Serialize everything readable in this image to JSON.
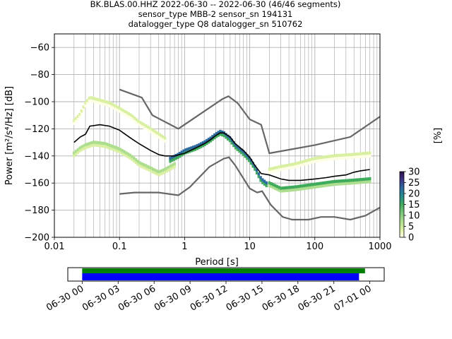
{
  "chart_data": {
    "type": "heatmap",
    "title_lines": [
      "BK.BLAS.00.HHZ   2022-06-30 -- 2022-06-30  (46/46 segments)",
      "sensor_type MBB-2 sensor_sn 194131",
      "datalogger_type Q8 datalogger_sn 510762"
    ],
    "xlabel": "Period [s]",
    "ylabel": "Power [m²/s⁴/Hz] [dB]",
    "x_scale": "log",
    "xlim": [
      0.01,
      1000
    ],
    "ylim": [
      -200,
      -50
    ],
    "x_ticks": [
      0.01,
      0.1,
      1,
      10,
      100,
      1000
    ],
    "x_tick_labels": [
      "0.01",
      "0.1",
      "1",
      "10",
      "100",
      "1000"
    ],
    "y_ticks": [
      -200,
      -180,
      -160,
      -140,
      -120,
      -100,
      -80,
      -60
    ],
    "y_tick_labels": [
      "−200",
      "−180",
      "−160",
      "−140",
      "−120",
      "−100",
      "−80",
      "−60"
    ],
    "grid": true,
    "colorbar": {
      "label": "[%]",
      "range": [
        0,
        30
      ],
      "ticks": [
        0,
        5,
        10,
        15,
        20,
        25,
        30
      ],
      "tick_labels": [
        "0",
        "5",
        "10",
        "15",
        "20",
        "25",
        "30"
      ]
    },
    "noise_model_high": [
      [
        0.1,
        -91
      ],
      [
        0.22,
        -97
      ],
      [
        0.32,
        -110
      ],
      [
        0.8,
        -120
      ],
      [
        3.8,
        -98
      ],
      [
        4.7,
        -96
      ],
      [
        6.5,
        -101
      ],
      [
        10,
        -113
      ],
      [
        15,
        -117
      ],
      [
        20,
        -138
      ],
      [
        100,
        -132
      ],
      [
        350,
        -126
      ],
      [
        1000,
        -111
      ]
    ],
    "noise_model_low": [
      [
        0.1,
        -168
      ],
      [
        0.17,
        -167
      ],
      [
        0.4,
        -167
      ],
      [
        0.8,
        -169
      ],
      [
        1.2,
        -163
      ],
      [
        2.4,
        -148
      ],
      [
        4,
        -142
      ],
      [
        4.8,
        -141
      ],
      [
        6,
        -147
      ],
      [
        10,
        -164
      ],
      [
        13,
        -167
      ],
      [
        15.5,
        -166
      ],
      [
        21,
        -176
      ],
      [
        32,
        -185
      ],
      [
        45,
        -187
      ],
      [
        80,
        -187
      ],
      [
        125,
        -185
      ],
      [
        200,
        -185
      ],
      [
        350,
        -187
      ],
      [
        600,
        -184
      ],
      [
        1000,
        -178
      ]
    ],
    "mean_psd": [
      [
        0.02,
        -130
      ],
      [
        0.025,
        -126
      ],
      [
        0.03,
        -124
      ],
      [
        0.035,
        -118
      ],
      [
        0.05,
        -117
      ],
      [
        0.07,
        -118
      ],
      [
        0.1,
        -121
      ],
      [
        0.15,
        -127
      ],
      [
        0.2,
        -131
      ],
      [
        0.3,
        -136
      ],
      [
        0.4,
        -139
      ],
      [
        0.5,
        -140
      ],
      [
        0.7,
        -140
      ],
      [
        1,
        -138
      ],
      [
        1.5,
        -134
      ],
      [
        2,
        -131
      ],
      [
        2.5,
        -128
      ],
      [
        3,
        -125
      ],
      [
        3.5,
        -123
      ],
      [
        4,
        -123
      ],
      [
        5,
        -126
      ],
      [
        6,
        -131
      ],
      [
        8,
        -136
      ],
      [
        10,
        -141
      ],
      [
        12,
        -147
      ],
      [
        15,
        -153
      ],
      [
        20,
        -154
      ],
      [
        30,
        -157
      ],
      [
        40,
        -158
      ],
      [
        60,
        -158
      ],
      [
        100,
        -157
      ],
      [
        150,
        -156
      ],
      [
        200,
        -155
      ],
      [
        300,
        -154
      ],
      [
        400,
        -152
      ],
      [
        500,
        -151
      ],
      [
        700,
        -150
      ]
    ],
    "histogram_bands": [
      {
        "name": "upper",
        "points": [
          [
            0.02,
            -114
          ],
          [
            0.025,
            -109
          ],
          [
            0.03,
            -101
          ],
          [
            0.035,
            -97
          ],
          [
            0.05,
            -99
          ],
          [
            0.07,
            -101
          ],
          [
            0.1,
            -105
          ],
          [
            0.15,
            -110
          ],
          [
            0.2,
            -115
          ],
          [
            0.3,
            -120
          ],
          [
            0.4,
            -124
          ],
          [
            0.5,
            -127
          ]
        ],
        "level": 3
      },
      {
        "name": "lower",
        "points": [
          [
            0.02,
            -138
          ],
          [
            0.025,
            -134
          ],
          [
            0.03,
            -132
          ],
          [
            0.04,
            -130
          ],
          [
            0.06,
            -131
          ],
          [
            0.1,
            -135
          ],
          [
            0.15,
            -140
          ],
          [
            0.2,
            -145
          ],
          [
            0.3,
            -149
          ],
          [
            0.4,
            -152
          ],
          [
            0.5,
            -150
          ],
          [
            0.7,
            -146
          ]
        ],
        "level": 8
      },
      {
        "name": "long-period-upper",
        "points": [
          [
            20,
            -150
          ],
          [
            30,
            -148
          ],
          [
            50,
            -146
          ],
          [
            100,
            -142
          ],
          [
            200,
            -140
          ],
          [
            400,
            -139
          ],
          [
            700,
            -138
          ]
        ],
        "level": 3
      },
      {
        "name": "long-period-core",
        "points": [
          [
            20,
            -160
          ],
          [
            30,
            -164
          ],
          [
            50,
            -163
          ],
          [
            100,
            -161
          ],
          [
            200,
            -159
          ],
          [
            400,
            -158
          ],
          [
            700,
            -157
          ]
        ],
        "level": 14
      },
      {
        "name": "short-period-core",
        "points": [
          [
            0.6,
            -142
          ],
          [
            0.8,
            -139
          ],
          [
            1,
            -136
          ],
          [
            1.5,
            -133
          ],
          [
            2,
            -130
          ],
          [
            2.5,
            -127
          ],
          [
            3,
            -124
          ],
          [
            3.5,
            -122
          ],
          [
            4,
            -123
          ],
          [
            5,
            -127
          ],
          [
            6,
            -132
          ],
          [
            8,
            -137
          ],
          [
            10,
            -142
          ],
          [
            12,
            -148
          ],
          [
            15,
            -157
          ],
          [
            18,
            -160
          ]
        ],
        "level": 24
      }
    ],
    "timeline": {
      "tick_labels": [
        "06-30 00",
        "06-30 03",
        "06-30 06",
        "06-30 09",
        "06-30 12",
        "06-30 15",
        "06-30 18",
        "06-30 21",
        "07-01 00"
      ],
      "hours": [
        0,
        3,
        6,
        9,
        12,
        15,
        18,
        21,
        24
      ],
      "data_span_hours": [
        0,
        23.6
      ],
      "used_span_hours": [
        0,
        23.1
      ],
      "xlim_hours": [
        -1.2,
        25.2
      ]
    },
    "colors": {
      "noise_model": "#666666",
      "mean": "#000000",
      "grid": "#b0b0b0",
      "timeline_data": "#008000",
      "timeline_used": "#0000ff",
      "colormap": [
        "#ffffe5",
        "#d9f0a3",
        "#addd8e",
        "#78c679",
        "#41ab5d",
        "#238b8e",
        "#2c6aa0",
        "#3b3689",
        "#2d0f4a"
      ]
    }
  }
}
